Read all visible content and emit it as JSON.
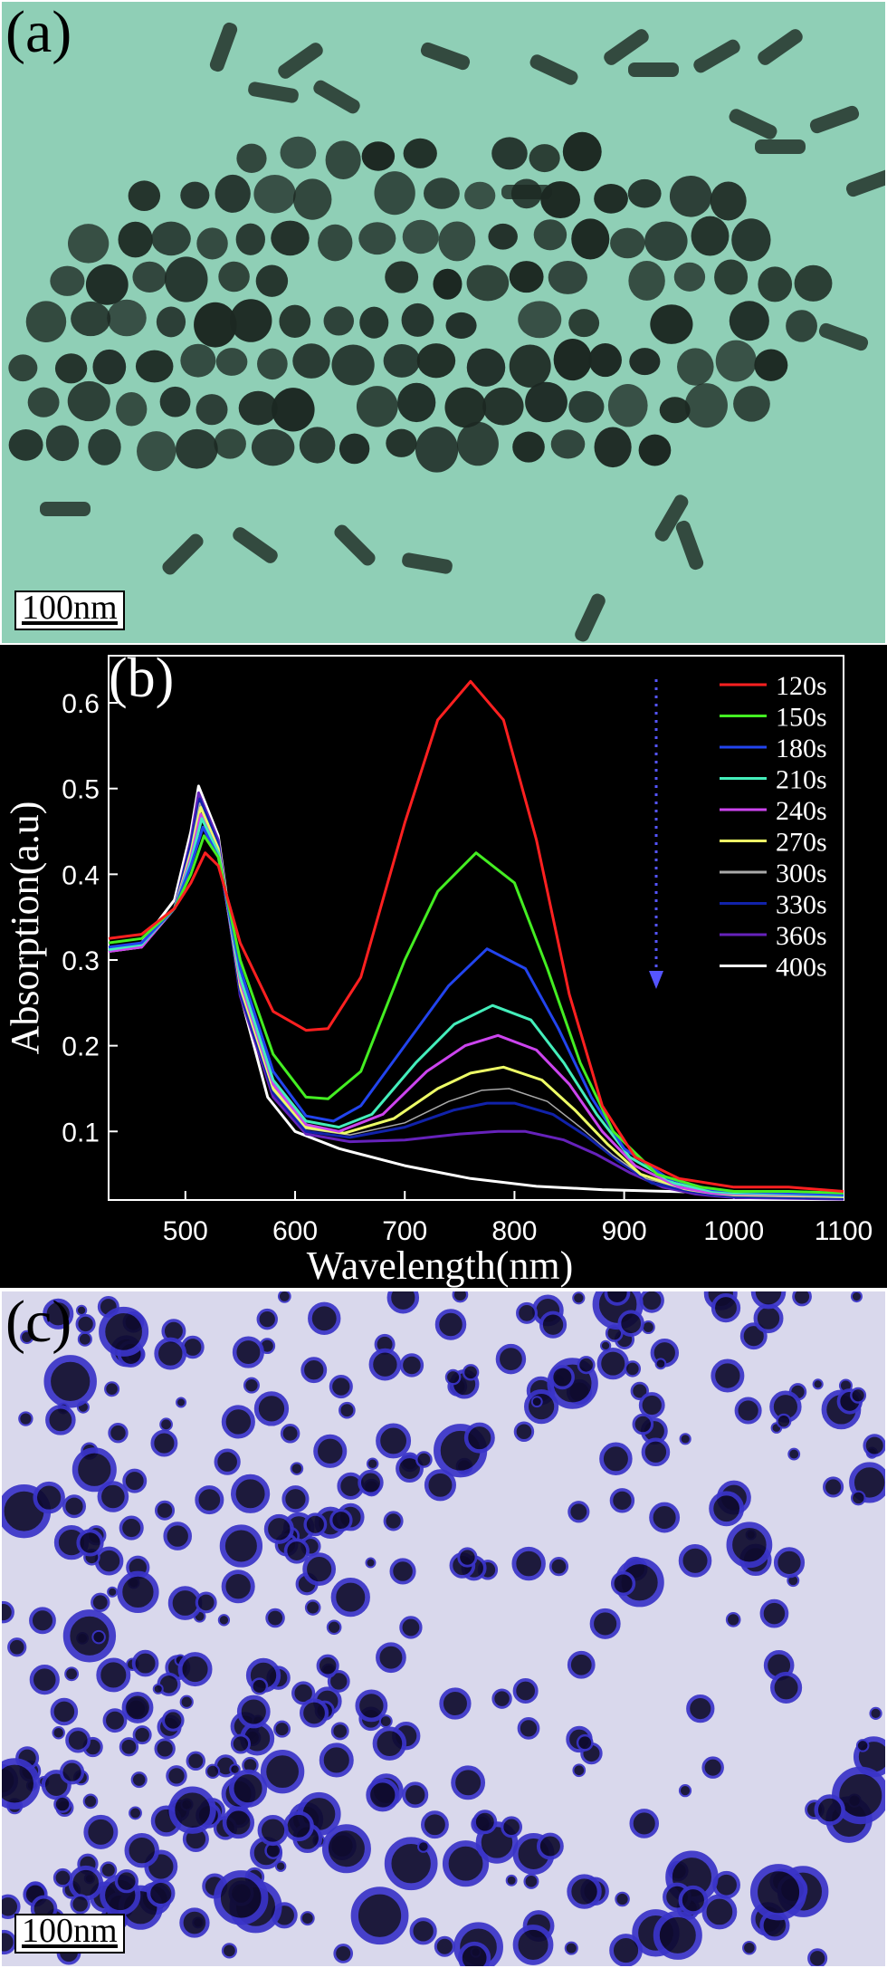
{
  "panel_a": {
    "label": "(a)",
    "scale_bar": "100nm",
    "background": "#8fcfb6",
    "particle_color": "#1c2822",
    "image_description": "TEM micrograph of gold nanoparticles and nanorods"
  },
  "panel_c": {
    "label": "(c)",
    "scale_bar": "100nm",
    "background": "#d9d8ec",
    "particle_color": "#0e0a2e",
    "rim_color": "#3a34c8"
  },
  "chart_data": {
    "type": "line",
    "panel_label": "(b)",
    "xlabel": "Wavelength(nm)",
    "ylabel": "Absorption(a.u)",
    "xlim": [
      430,
      1100
    ],
    "ylim": [
      0.02,
      0.655
    ],
    "x_ticks": [
      "500",
      "600",
      "700",
      "800",
      "900",
      "1000",
      "1100"
    ],
    "y_ticks": [
      "0.1",
      "0.2",
      "0.3",
      "0.4",
      "0.5",
      "0.6"
    ],
    "x_tick_values": [
      500,
      600,
      700,
      800,
      900,
      1000,
      1100
    ],
    "y_tick_values": [
      0.1,
      0.2,
      0.3,
      0.4,
      0.5,
      0.6
    ],
    "legend_position": "top-right",
    "annotation": "dotted downward arrow indicating decreasing absorption",
    "background": "#000000",
    "axis_color": "#ffffff",
    "series": [
      {
        "name": "120s",
        "color": "#ff2020",
        "x": [
          430,
          460,
          490,
          505,
          518,
          530,
          550,
          580,
          610,
          630,
          660,
          700,
          730,
          760,
          790,
          820,
          850,
          880,
          910,
          950,
          1000,
          1050,
          1100
        ],
        "y": [
          0.325,
          0.33,
          0.36,
          0.39,
          0.425,
          0.41,
          0.32,
          0.24,
          0.218,
          0.22,
          0.28,
          0.46,
          0.58,
          0.625,
          0.58,
          0.44,
          0.26,
          0.13,
          0.07,
          0.045,
          0.035,
          0.035,
          0.03
        ]
      },
      {
        "name": "150s",
        "color": "#44ee22",
        "x": [
          430,
          460,
          490,
          505,
          517,
          530,
          550,
          580,
          610,
          630,
          660,
          700,
          730,
          765,
          800,
          830,
          860,
          890,
          930,
          970,
          1000,
          1050,
          1100
        ],
        "y": [
          0.32,
          0.325,
          0.36,
          0.4,
          0.445,
          0.42,
          0.3,
          0.19,
          0.14,
          0.138,
          0.17,
          0.3,
          0.38,
          0.425,
          0.39,
          0.29,
          0.18,
          0.1,
          0.05,
          0.035,
          0.03,
          0.03,
          0.028
        ]
      },
      {
        "name": "180s",
        "color": "#2244ee",
        "x": [
          430,
          460,
          490,
          505,
          516,
          530,
          550,
          580,
          610,
          635,
          660,
          700,
          740,
          775,
          810,
          840,
          870,
          900,
          940,
          980,
          1000,
          1050,
          1100
        ],
        "y": [
          0.315,
          0.32,
          0.36,
          0.41,
          0.455,
          0.42,
          0.29,
          0.17,
          0.118,
          0.112,
          0.13,
          0.2,
          0.27,
          0.313,
          0.29,
          0.22,
          0.14,
          0.08,
          0.045,
          0.032,
          0.03,
          0.028,
          0.026
        ]
      },
      {
        "name": "210s",
        "color": "#44eebb",
        "x": [
          430,
          460,
          490,
          505,
          515,
          530,
          550,
          580,
          610,
          640,
          670,
          710,
          745,
          780,
          815,
          845,
          875,
          905,
          945,
          980,
          1000,
          1050,
          1100
        ],
        "y": [
          0.312,
          0.318,
          0.36,
          0.415,
          0.465,
          0.425,
          0.28,
          0.16,
          0.112,
          0.105,
          0.12,
          0.18,
          0.225,
          0.247,
          0.23,
          0.18,
          0.12,
          0.07,
          0.04,
          0.03,
          0.028,
          0.027,
          0.025
        ]
      },
      {
        "name": "240s",
        "color": "#cc44ee",
        "x": [
          430,
          460,
          490,
          505,
          514,
          530,
          550,
          580,
          610,
          640,
          680,
          720,
          755,
          785,
          820,
          850,
          880,
          910,
          950,
          980,
          1000,
          1050,
          1100
        ],
        "y": [
          0.31,
          0.315,
          0.36,
          0.42,
          0.47,
          0.425,
          0.275,
          0.155,
          0.108,
          0.1,
          0.12,
          0.17,
          0.2,
          0.212,
          0.195,
          0.155,
          0.1,
          0.06,
          0.035,
          0.028,
          0.027,
          0.026,
          0.025
        ]
      },
      {
        "name": "270s",
        "color": "#eeff66",
        "x": [
          430,
          460,
          490,
          505,
          514,
          530,
          550,
          580,
          610,
          645,
          690,
          730,
          760,
          790,
          825,
          855,
          885,
          915,
          955,
          980,
          1000,
          1050,
          1100
        ],
        "y": [
          0.31,
          0.315,
          0.36,
          0.425,
          0.478,
          0.43,
          0.27,
          0.15,
          0.105,
          0.098,
          0.115,
          0.15,
          0.168,
          0.175,
          0.16,
          0.125,
          0.085,
          0.05,
          0.033,
          0.028,
          0.026,
          0.025,
          0.024
        ]
      },
      {
        "name": "300s",
        "color": "#aaaaaa",
        "x": [
          430,
          460,
          490,
          505,
          513,
          530,
          550,
          580,
          610,
          650,
          700,
          740,
          770,
          795,
          830,
          860,
          890,
          920,
          960,
          980,
          1000,
          1050,
          1100
        ],
        "y": [
          0.31,
          0.315,
          0.36,
          0.43,
          0.483,
          0.43,
          0.265,
          0.148,
          0.103,
          0.096,
          0.11,
          0.135,
          0.148,
          0.15,
          0.135,
          0.105,
          0.072,
          0.045,
          0.031,
          0.027,
          0.025,
          0.024,
          0.023
        ]
      },
      {
        "name": "330s",
        "color": "#1122aa",
        "x": [
          430,
          460,
          490,
          505,
          513,
          530,
          550,
          580,
          610,
          650,
          700,
          745,
          775,
          800,
          835,
          865,
          895,
          925,
          960,
          980,
          1000,
          1050,
          1100
        ],
        "y": [
          0.31,
          0.315,
          0.36,
          0.435,
          0.488,
          0.435,
          0.262,
          0.145,
          0.1,
          0.093,
          0.105,
          0.125,
          0.133,
          0.133,
          0.12,
          0.095,
          0.065,
          0.04,
          0.03,
          0.026,
          0.024,
          0.023,
          0.022
        ]
      },
      {
        "name": "360s",
        "color": "#6622bb",
        "x": [
          430,
          460,
          490,
          505,
          512,
          530,
          550,
          580,
          610,
          650,
          700,
          750,
          785,
          810,
          845,
          875,
          905,
          935,
          965,
          980,
          1000,
          1050,
          1100
        ],
        "y": [
          0.31,
          0.315,
          0.36,
          0.44,
          0.495,
          0.44,
          0.258,
          0.14,
          0.097,
          0.088,
          0.09,
          0.097,
          0.1,
          0.1,
          0.09,
          0.073,
          0.052,
          0.035,
          0.027,
          0.025,
          0.023,
          0.022,
          0.021
        ]
      },
      {
        "name": "400s",
        "color": "#ffffff",
        "x": [
          430,
          460,
          490,
          505,
          512,
          530,
          550,
          575,
          600,
          640,
          700,
          760,
          820,
          880,
          940,
          1000,
          1050,
          1100
        ],
        "y": [
          0.31,
          0.32,
          0.37,
          0.45,
          0.503,
          0.445,
          0.26,
          0.14,
          0.1,
          0.08,
          0.06,
          0.045,
          0.036,
          0.032,
          0.03,
          0.028,
          0.027,
          0.026
        ]
      }
    ]
  }
}
